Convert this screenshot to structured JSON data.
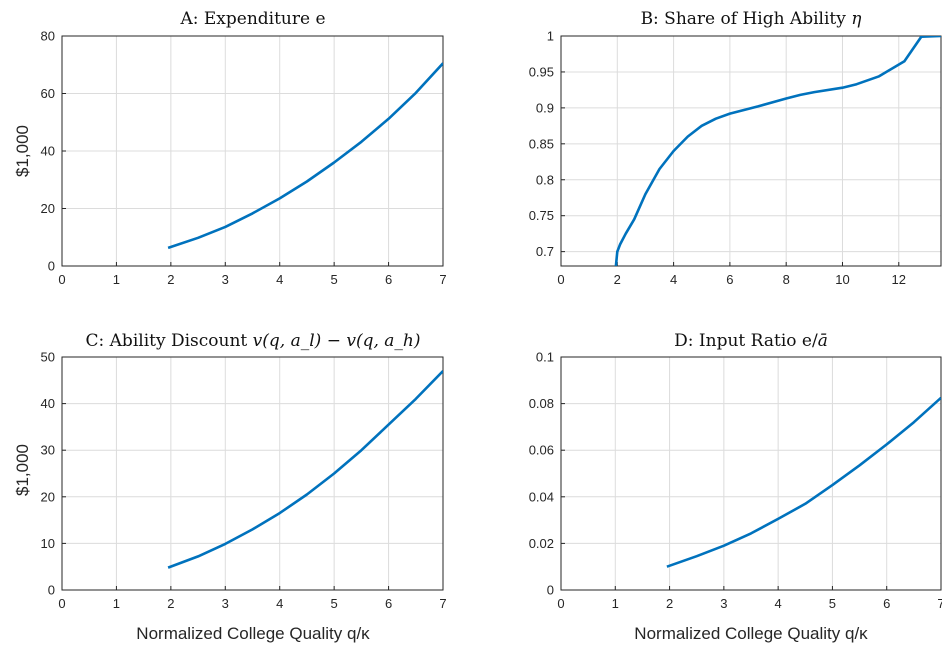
{
  "figure": {
    "colors": {
      "line": "#0072BD",
      "grid": "#dcdcdc",
      "axis": "#262626"
    }
  },
  "chart_data": [
    {
      "id": "A",
      "type": "line",
      "title_text": "A: Expenditure e",
      "xlabel": "",
      "ylabel": "$1,000",
      "xlim": [
        0,
        7
      ],
      "ylim": [
        0,
        80
      ],
      "xticks": [
        "0",
        "1",
        "2",
        "3",
        "4",
        "5",
        "6",
        "7"
      ],
      "yticks": [
        "0",
        "20",
        "40",
        "60",
        "80"
      ],
      "grid": true,
      "series": [
        {
          "x": [
            1.95,
            2.5,
            3,
            3.5,
            4,
            4.5,
            5,
            5.5,
            6,
            6.5,
            7
          ],
          "y": [
            6.3,
            9.8,
            13.6,
            18.3,
            23.5,
            29.4,
            36.0,
            43.2,
            51.2,
            60.2,
            70.5
          ]
        }
      ]
    },
    {
      "id": "B",
      "type": "line",
      "title_text": "B: Share of High Ability ",
      "title_math": "η",
      "xlabel": "",
      "ylabel": "",
      "xlim": [
        0,
        13.5
      ],
      "ylim": [
        0.68,
        1
      ],
      "xticks": [
        "0",
        "2",
        "4",
        "6",
        "8",
        "10",
        "12"
      ],
      "yticks": [
        "0.7",
        "0.75",
        "0.8",
        "0.85",
        "0.9",
        "0.95",
        "1"
      ],
      "grid": true,
      "series": [
        {
          "x": [
            1.95,
            2.0,
            2.1,
            2.3,
            2.6,
            3.0,
            3.5,
            4.0,
            4.5,
            5.0,
            5.5,
            6.0,
            7.0,
            8.0,
            8.5,
            9.0,
            10.0,
            10.5,
            11.3,
            12.2,
            12.8,
            13.5
          ],
          "y": [
            0.68,
            0.7,
            0.71,
            0.725,
            0.745,
            0.78,
            0.815,
            0.84,
            0.86,
            0.875,
            0.885,
            0.892,
            0.902,
            0.913,
            0.918,
            0.922,
            0.928,
            0.933,
            0.944,
            0.965,
            0.999,
            1.0
          ]
        }
      ]
    },
    {
      "id": "C",
      "type": "line",
      "title_text": "C: Ability Discount ",
      "title_math": "v(q, a_l) − v(q, a_h)",
      "xlabel": "Normalized College Quality q/κ",
      "ylabel": "$1,000",
      "xlim": [
        0,
        7
      ],
      "ylim": [
        0,
        50
      ],
      "xticks": [
        "0",
        "1",
        "2",
        "3",
        "4",
        "5",
        "6",
        "7"
      ],
      "yticks": [
        "0",
        "10",
        "20",
        "30",
        "40",
        "50"
      ],
      "grid": true,
      "series": [
        {
          "x": [
            1.95,
            2.5,
            3,
            3.5,
            4,
            4.5,
            5,
            5.5,
            6,
            6.5,
            7
          ],
          "y": [
            4.8,
            7.2,
            9.9,
            13.0,
            16.5,
            20.5,
            25.0,
            30.0,
            35.5,
            41.0,
            47.0
          ]
        }
      ]
    },
    {
      "id": "D",
      "type": "line",
      "title_text": "D: Input Ratio e/",
      "title_math": "ā",
      "xlabel": "Normalized College Quality q/κ",
      "ylabel": "",
      "xlim": [
        0,
        7
      ],
      "ylim": [
        0,
        0.1
      ],
      "xticks": [
        "0",
        "1",
        "2",
        "3",
        "4",
        "5",
        "6",
        "7"
      ],
      "yticks": [
        "0",
        "0.02",
        "0.04",
        "0.06",
        "0.08",
        "0.1"
      ],
      "grid": true,
      "series": [
        {
          "x": [
            1.95,
            2.5,
            3,
            3.5,
            4,
            4.5,
            5,
            5.5,
            6,
            6.5,
            7
          ],
          "y": [
            0.01,
            0.0145,
            0.019,
            0.0243,
            0.0305,
            0.037,
            0.045,
            0.0535,
            0.0625,
            0.072,
            0.0825
          ]
        }
      ]
    }
  ]
}
